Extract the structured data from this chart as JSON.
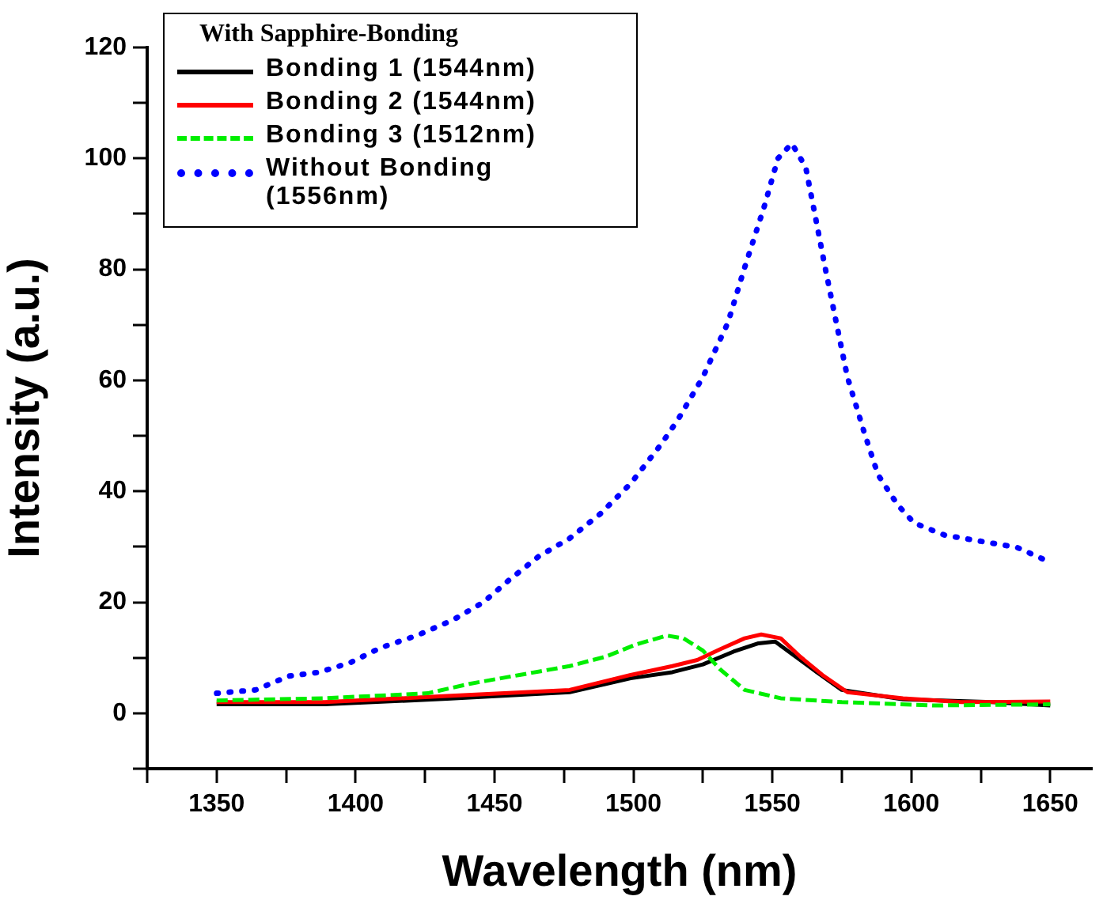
{
  "chart_data": {
    "type": "line",
    "xlabel": "Wavelength (nm)",
    "ylabel": "Intensity (a.u.)",
    "legend_title": "With Sapphire-Bonding",
    "legend": "top left",
    "grid": false,
    "marker": "none",
    "xlim": [
      1325,
      1665
    ],
    "xticks": [
      {
        "value": 1325,
        "label": null
      },
      1350,
      {
        "value": 1375,
        "label": null
      },
      1400,
      {
        "value": 1425,
        "label": null
      },
      1450,
      {
        "value": 1475,
        "label": null
      },
      1500,
      {
        "value": 1525,
        "label": null
      },
      1550,
      {
        "value": 1575,
        "label": null
      },
      1600,
      {
        "value": 1625,
        "label": null
      },
      1650
    ],
    "ylim": [
      -10,
      120
    ],
    "yticks": [
      {
        "value": -10,
        "label": null
      },
      0,
      {
        "value": 10,
        "label": null
      },
      20,
      {
        "value": 30,
        "label": null
      },
      40,
      {
        "value": 50,
        "label": null
      },
      60,
      {
        "value": 70,
        "label": null
      },
      80,
      {
        "value": 90,
        "label": null
      },
      100,
      {
        "value": 110,
        "label": null
      },
      120
    ],
    "series": [
      {
        "name": "Bonding 1 (1544nm)",
        "color": "#000000",
        "line_style": "solid",
        "x": [
          1350,
          1389,
          1433,
          1477,
          1499,
          1514,
          1525,
          1536,
          1545,
          1551,
          1557,
          1566,
          1575,
          1597,
          1629,
          1650
        ],
        "values": [
          1.6,
          1.6,
          2.6,
          3.8,
          6.3,
          7.4,
          8.8,
          11.1,
          12.6,
          12.9,
          10.7,
          7.4,
          4.2,
          2.5,
          2,
          1.4
        ]
      },
      {
        "name": "Bonding 2 (1544nm)",
        "color": "#ff0000",
        "line_style": "solid",
        "x": [
          1350,
          1389,
          1433,
          1477,
          1499,
          1514,
          1523,
          1531,
          1540,
          1546,
          1553,
          1560,
          1568,
          1577,
          1597,
          1618,
          1650
        ],
        "values": [
          2,
          2,
          3.1,
          4.2,
          6.9,
          8.5,
          9.6,
          11.5,
          13.5,
          14.2,
          13.5,
          10.2,
          6.9,
          3.8,
          2.7,
          2,
          2.1
        ]
      },
      {
        "name": "Bonding 3 (1512nm)",
        "color": "#00ee00",
        "line_style": "dashed",
        "x": [
          1350,
          1389,
          1426,
          1441,
          1459,
          1477,
          1490,
          1501,
          1512,
          1518,
          1525,
          1531,
          1540,
          1553,
          1575,
          1608,
          1650
        ],
        "values": [
          2.3,
          2.7,
          3.6,
          5.3,
          6.9,
          8.5,
          10.2,
          12.4,
          14,
          13.5,
          11.3,
          8,
          4.2,
          2.7,
          2,
          1.4,
          1.6
        ]
      },
      {
        "name": "Without Bonding (1556nm)",
        "color": "#0000ff",
        "line_style": "dotted",
        "x": [
          1350,
          1364,
          1376,
          1387,
          1398,
          1409,
          1422,
          1435,
          1446,
          1455,
          1466,
          1477,
          1488,
          1499,
          1510,
          1516,
          1525,
          1534,
          1540,
          1547,
          1552,
          1557,
          1562,
          1565,
          1569,
          1573,
          1577,
          1583,
          1588,
          1595,
          1601,
          1612,
          1625,
          1638,
          1650
        ],
        "values": [
          3.6,
          4.2,
          6.7,
          7.4,
          9.1,
          11.8,
          14,
          16.8,
          20,
          23.9,
          28.3,
          31.5,
          35.9,
          41.4,
          48.5,
          52.9,
          60.6,
          70.4,
          80.3,
          91.2,
          100,
          102.7,
          98.4,
          90.7,
          80.3,
          70.4,
          60.6,
          50.7,
          43,
          37.6,
          34.3,
          32.1,
          31,
          29.9,
          27.2
        ]
      }
    ]
  }
}
